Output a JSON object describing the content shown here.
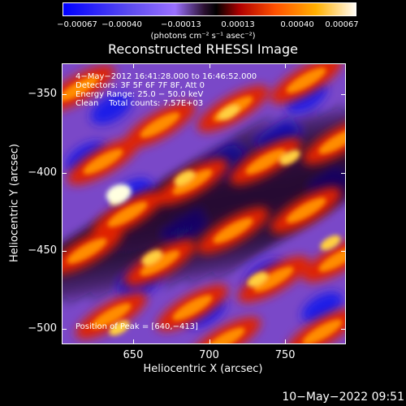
{
  "chart_data": {
    "type": "heatmap",
    "title": "Reconstructed RHESSI Image",
    "xlabel": "Heliocentric X (arcsec)",
    "ylabel": "Heliocentric Y (arcsec)",
    "xlim": [
      603,
      790
    ],
    "ylim": [
      -510,
      -330
    ],
    "x_ticks": [
      650,
      700,
      750
    ],
    "y_ticks": [
      -350,
      -400,
      -450,
      -500
    ],
    "x_tick_labels": [
      "650",
      "700",
      "750"
    ],
    "y_tick_labels": [
      "−350",
      "−400",
      "−450",
      "−500"
    ],
    "colorbar": {
      "range": [
        -0.00067,
        0.00067
      ],
      "tick_values": [
        -0.00067,
        -0.0004,
        -0.00013,
        0.00013,
        0.0004,
        0.00067
      ],
      "tick_labels": [
        "−0.00067",
        "−0.00040",
        "−0.00013",
        "0.00013",
        "0.00040",
        "0.00067"
      ],
      "units": "(photons cm⁻² s⁻¹ asec⁻²)"
    },
    "annotations": {
      "time_range": "4−May−2012 16:41:28.000 to 16:46:52.000",
      "detectors": "Detectors: 3F 5F 6F 7F 8F, Att 0",
      "energy_range": "Energy Range: 25.0 − 50.0 keV",
      "method_counts": "Clean    Total counts: 7.57E+03",
      "peak_position": "Position of Peak = [640,−413]"
    },
    "peak": {
      "x": 640,
      "y": -413
    }
  },
  "timestamp": "10−May−2022 09:51",
  "colors": {
    "background": "#000000",
    "foreground": "#ffffff",
    "colormap": [
      "#0000ff",
      "#5b2fb8",
      "#8a52e0",
      "#1a0a1a",
      "#8a0000",
      "#ff3000",
      "#ff9000",
      "#ffe040",
      "#ffffff"
    ]
  }
}
